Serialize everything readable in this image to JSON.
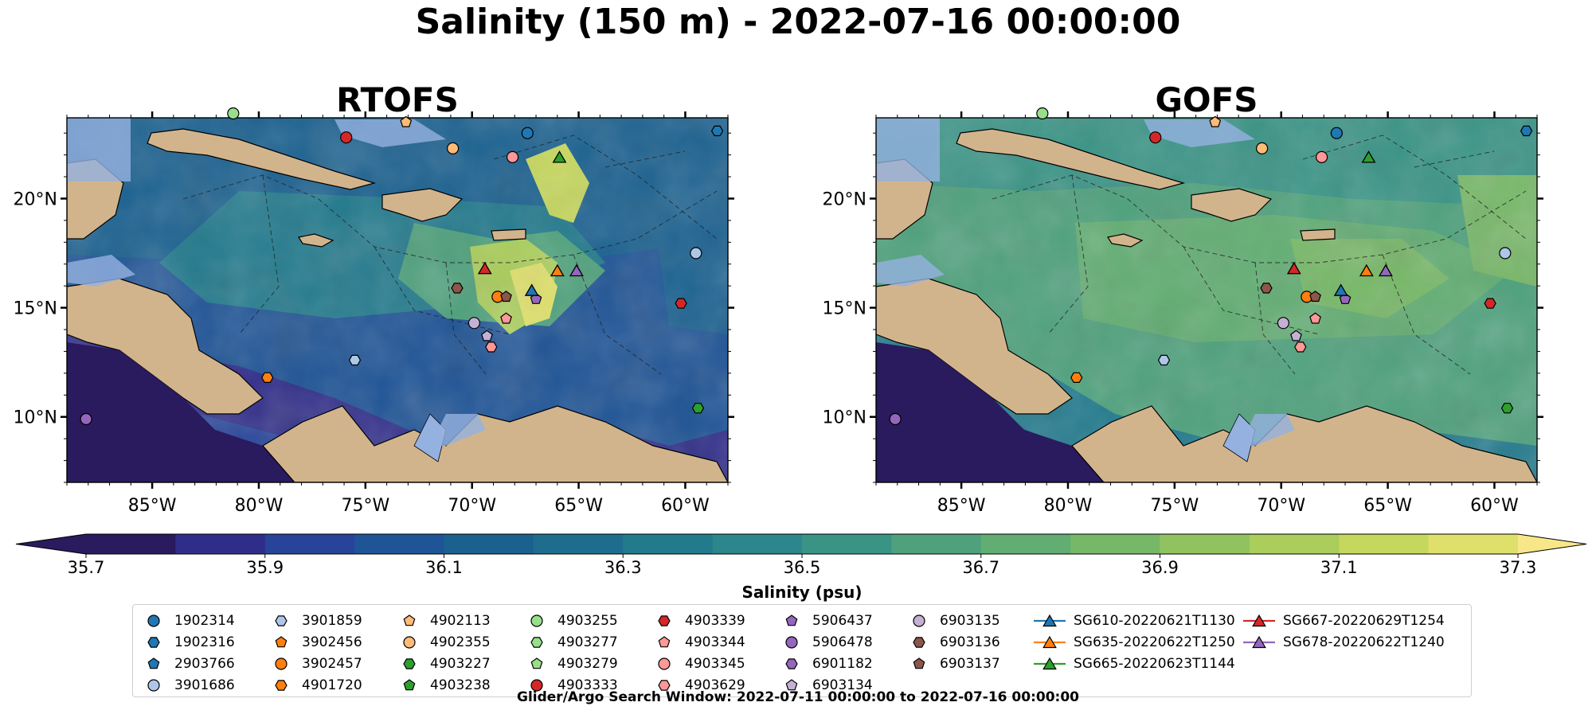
{
  "figure": {
    "title": "Salinity (150 m) - 2022-07-16 00:00:00",
    "footer": "Glider/Argo Search Window: 2022-07-11 00:00:00 to 2022-07-16 00:00:00"
  },
  "colors": {
    "land": "#d2b48c",
    "shallow_water": "#95b1e0",
    "colormap": [
      "#2a1a5e",
      "#302d8a",
      "#27449a",
      "#1f5496",
      "#1b6190",
      "#1e6d8e",
      "#227a8d",
      "#2b878b",
      "#3a9486",
      "#4ea17c",
      "#61ad72",
      "#77b868",
      "#90c35f",
      "#aacd5b",
      "#c6d75d",
      "#dfe06b"
    ],
    "over": "#f7e788"
  },
  "chart_data": [
    {
      "type": "heatmap",
      "panel": "left",
      "title": "RTOFS",
      "variable": "Salinity",
      "depth": "150 m",
      "x_ticks": [
        "85°W",
        "80°W",
        "75°W",
        "70°W",
        "65°W",
        "60°W"
      ],
      "x_tick_values": [
        -85,
        -80,
        -75,
        -70,
        -65,
        -60
      ],
      "y_ticks": [
        "10°N",
        "15°N",
        "20°N"
      ],
      "y_tick_values": [
        10,
        15,
        20
      ],
      "xlim": [
        -89,
        -58
      ],
      "ylim": [
        7,
        23.7
      ],
      "salinity_range_shown": [
        35.7,
        37.3
      ]
    },
    {
      "type": "heatmap",
      "panel": "right",
      "title": "GOFS",
      "variable": "Salinity",
      "depth": "150 m",
      "x_ticks": [
        "85°W",
        "80°W",
        "75°W",
        "70°W",
        "65°W",
        "60°W"
      ],
      "x_tick_values": [
        -85,
        -80,
        -75,
        -70,
        -65,
        -60
      ],
      "y_ticks": [
        "10°N",
        "15°N",
        "20°N"
      ],
      "y_tick_values": [
        10,
        15,
        20
      ],
      "xlim": [
        -89,
        -58
      ],
      "ylim": [
        7,
        23.7
      ],
      "salinity_range_shown": [
        35.7,
        37.3
      ]
    }
  ],
  "colorbar": {
    "label": "Salinity (psu)",
    "ticks": [
      "35.7",
      "35.9",
      "36.1",
      "36.3",
      "36.5",
      "36.7",
      "36.9",
      "37.1",
      "37.3"
    ],
    "tick_values": [
      35.7,
      35.9,
      36.1,
      36.3,
      36.5,
      36.7,
      36.9,
      37.1,
      37.3
    ],
    "vmin": 35.7,
    "vmax": 37.3,
    "levels": 16,
    "extend": "both"
  },
  "platforms": [
    {
      "id": "1902314",
      "marker": "circle",
      "color": "#1f77b4",
      "lon": -67.4,
      "lat": 23.0
    },
    {
      "id": "1902316",
      "marker": "hexagon",
      "color": "#1f77b4",
      "lon": -58.5,
      "lat": 23.1
    },
    {
      "id": "2903766",
      "marker": "pentagon",
      "color": "#1f77b4",
      "lon": null,
      "lat": null
    },
    {
      "id": "3901686",
      "marker": "circle",
      "color": "#aec7e8",
      "lon": -59.5,
      "lat": 17.5
    },
    {
      "id": "3901859",
      "marker": "hexagon",
      "color": "#aec7e8",
      "lon": -75.5,
      "lat": 12.6
    },
    {
      "id": "3902456",
      "marker": "pentagon",
      "color": "#ff7f0e",
      "lon": null,
      "lat": null
    },
    {
      "id": "3902457",
      "marker": "circle",
      "color": "#ff7f0e",
      "lon": -68.8,
      "lat": 15.5
    },
    {
      "id": "4901720",
      "marker": "hexagon",
      "color": "#ff7f0e",
      "lon": -79.6,
      "lat": 11.8
    },
    {
      "id": "4902113",
      "marker": "pentagon",
      "color": "#ffbb78",
      "lon": -73.1,
      "lat": 23.5
    },
    {
      "id": "4902355",
      "marker": "circle",
      "color": "#ffbb78",
      "lon": -70.9,
      "lat": 22.3
    },
    {
      "id": "4903227",
      "marker": "hexagon",
      "color": "#2ca02c",
      "lon": -59.4,
      "lat": 10.4
    },
    {
      "id": "4903238",
      "marker": "pentagon",
      "color": "#2ca02c",
      "lon": null,
      "lat": null
    },
    {
      "id": "4903255",
      "marker": "circle",
      "color": "#98df8a",
      "lon": -81.2,
      "lat": 23.9
    },
    {
      "id": "4903277",
      "marker": "hexagon",
      "color": "#98df8a",
      "lon": null,
      "lat": null
    },
    {
      "id": "4903279",
      "marker": "pentagon",
      "color": "#98df8a",
      "lon": null,
      "lat": null
    },
    {
      "id": "4903333",
      "marker": "circle",
      "color": "#d62728",
      "lon": -75.9,
      "lat": 22.8
    },
    {
      "id": "4903339",
      "marker": "hexagon",
      "color": "#d62728",
      "lon": -60.2,
      "lat": 15.2
    },
    {
      "id": "4903344",
      "marker": "pentagon",
      "color": "#ff9896",
      "lon": -68.4,
      "lat": 14.5
    },
    {
      "id": "4903345",
      "marker": "circle",
      "color": "#ff9896",
      "lon": -68.1,
      "lat": 21.9
    },
    {
      "id": "4903629",
      "marker": "hexagon",
      "color": "#ff9896",
      "lon": -69.1,
      "lat": 13.2
    },
    {
      "id": "5906437",
      "marker": "pentagon",
      "color": "#9467bd",
      "lon": -67.0,
      "lat": 15.4
    },
    {
      "id": "5906478",
      "marker": "circle",
      "color": "#9467bd",
      "lon": -88.1,
      "lat": 9.9
    },
    {
      "id": "6901182",
      "marker": "hexagon",
      "color": "#9467bd",
      "lon": null,
      "lat": null
    },
    {
      "id": "6903134",
      "marker": "pentagon",
      "color": "#c5b0d5",
      "lon": -69.3,
      "lat": 13.7
    },
    {
      "id": "6903135",
      "marker": "circle",
      "color": "#c5b0d5",
      "lon": -69.9,
      "lat": 14.3
    },
    {
      "id": "6903136",
      "marker": "hexagon",
      "color": "#8c564b",
      "lon": -70.7,
      "lat": 15.9
    },
    {
      "id": "6903137",
      "marker": "pentagon",
      "color": "#8c564b",
      "lon": -68.4,
      "lat": 15.5
    }
  ],
  "gliders": [
    {
      "id": "SG610-20220621T1130",
      "color": "#1f77b4",
      "lon": -67.2,
      "lat": 15.8
    },
    {
      "id": "SG635-20220622T1250",
      "color": "#ff7f0e",
      "lon": -66.0,
      "lat": 16.7
    },
    {
      "id": "SG665-20220623T1144",
      "color": "#2ca02c",
      "lon": -65.9,
      "lat": 21.9
    },
    {
      "id": "SG667-20220629T1254",
      "color": "#d62728",
      "lon": -69.4,
      "lat": 16.8
    },
    {
      "id": "SG678-20220622T1240",
      "color": "#9467bd",
      "lon": -65.1,
      "lat": 16.7
    }
  ]
}
